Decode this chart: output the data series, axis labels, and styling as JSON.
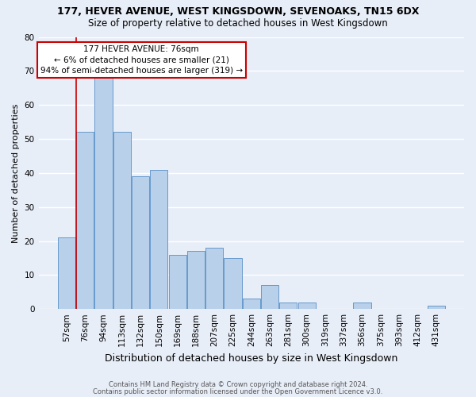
{
  "title1": "177, HEVER AVENUE, WEST KINGSDOWN, SEVENOAKS, TN15 6DX",
  "title2": "Size of property relative to detached houses in West Kingsdown",
  "xlabel": "Distribution of detached houses by size in West Kingsdown",
  "ylabel": "Number of detached properties",
  "categories": [
    "57sqm",
    "76sqm",
    "94sqm",
    "113sqm",
    "132sqm",
    "150sqm",
    "169sqm",
    "188sqm",
    "207sqm",
    "225sqm",
    "244sqm",
    "263sqm",
    "281sqm",
    "300sqm",
    "319sqm",
    "337sqm",
    "356sqm",
    "375sqm",
    "393sqm",
    "412sqm",
    "431sqm"
  ],
  "values": [
    21,
    52,
    68,
    52,
    39,
    41,
    16,
    17,
    18,
    15,
    3,
    7,
    2,
    2,
    0,
    0,
    2,
    0,
    0,
    0,
    1
  ],
  "bar_color": "#b8d0ea",
  "bar_edge_color": "#6699cc",
  "highlight_index": 1,
  "highlight_line_color": "#cc0000",
  "annotation_line1": "177 HEVER AVENUE: 76sqm",
  "annotation_line2": "← 6% of detached houses are smaller (21)",
  "annotation_line3": "94% of semi-detached houses are larger (319) →",
  "annotation_box_color": "white",
  "annotation_box_edge": "#cc0000",
  "ylim": [
    0,
    80
  ],
  "yticks": [
    0,
    10,
    20,
    30,
    40,
    50,
    60,
    70,
    80
  ],
  "footer1": "Contains HM Land Registry data © Crown copyright and database right 2024.",
  "footer2": "Contains public sector information licensed under the Open Government Licence v3.0.",
  "bg_color": "#e8eef8",
  "plot_bg_color": "#e8eef8",
  "grid_color": "#ffffff",
  "title1_fontsize": 9,
  "title2_fontsize": 8.5,
  "xlabel_fontsize": 9,
  "ylabel_fontsize": 8,
  "annotation_fontsize": 7.5,
  "tick_fontsize": 7.5
}
